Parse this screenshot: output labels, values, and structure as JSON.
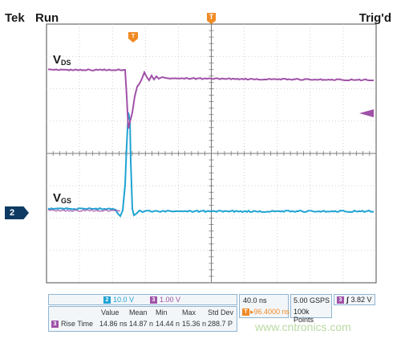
{
  "header": {
    "brand": "Tek",
    "state": "Run",
    "trigger_state": "Trig'd",
    "trigger_marker": "T"
  },
  "traces": {
    "vds": {
      "label": "V",
      "sub": "DS",
      "color": "#a052a8"
    },
    "vgs": {
      "label": "V",
      "sub": "GS",
      "color": "#1fa3d3"
    }
  },
  "channel_marker": "2",
  "channels": {
    "ch2": {
      "badge": "2",
      "scale": "10.0 V",
      "color": "#1fa3d3"
    },
    "ch3": {
      "badge": "3",
      "scale": "1.00 V",
      "color": "#a052a8"
    }
  },
  "timebase": {
    "scale": "40.0 ns",
    "marker": "T",
    "position": "▸96.4000 ns",
    "sample_rate": "5.00 GSPS",
    "record": "100k Points"
  },
  "trigger": {
    "badge": "3",
    "slope": "∫",
    "level": "3.82 V"
  },
  "measurements": {
    "headers": [
      "Value",
      "Mean",
      "Min",
      "Max",
      "Std Dev"
    ],
    "row": {
      "badge": "3",
      "name": "Rise Time",
      "values": [
        "14.86 ns",
        "14.87 n",
        "14.44 n",
        "15.36 n",
        "288.7 P"
      ]
    }
  },
  "watermark": "www.cntronics.com"
}
